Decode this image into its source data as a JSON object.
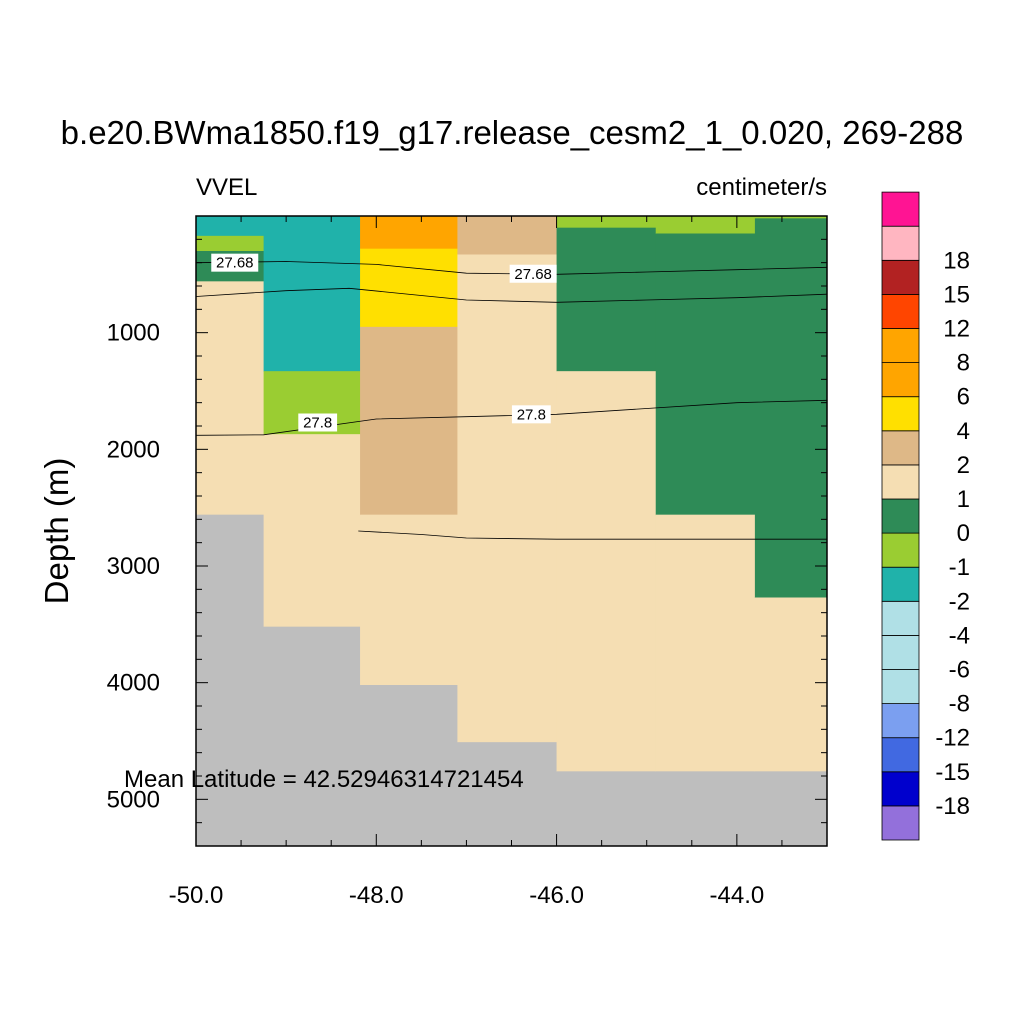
{
  "chart_data": {
    "type": "heatmap",
    "title": "b.e20.BWma1850.f19_g17.release_cesm2_1_0.020, 269-288",
    "variable_label": "VVEL",
    "units_label": "centimeter/s",
    "xlabel": "",
    "ylabel": "Depth (m)",
    "xlim": [
      -50.0,
      -43.0
    ],
    "ylim": [
      0,
      5400
    ],
    "y_reversed": true,
    "x_ticks": [
      -50.0,
      -48.0,
      -46.0,
      -44.0
    ],
    "x_tick_labels": [
      "-50.0",
      "-48.0",
      "-46.0",
      "-44.0"
    ],
    "y_ticks": [
      1000,
      2000,
      3000,
      4000,
      5000
    ],
    "y_tick_labels": [
      "1000",
      "2000",
      "3000",
      "4000",
      "5000"
    ],
    "annotation": "Mean Latitude = 42.52946314721454",
    "missing_color": "#bebebe",
    "columns": [
      {
        "x0": -50.0,
        "x1": -49.25
      },
      {
        "x0": -49.25,
        "x1": -48.18
      },
      {
        "x0": -48.18,
        "x1": -47.1
      },
      {
        "x0": -47.1,
        "x1": -46.0
      },
      {
        "x0": -46.0,
        "x1": -44.9
      },
      {
        "x0": -44.9,
        "x1": -43.8
      },
      {
        "x0": -43.8,
        "x1": -43.0
      }
    ],
    "cells": [
      {
        "col": 0,
        "d0": 0,
        "d1": 170,
        "color": "#20b2aa"
      },
      {
        "col": 0,
        "d0": 170,
        "d1": 300,
        "color": "#9acd32"
      },
      {
        "col": 0,
        "d0": 300,
        "d1": 560,
        "color": "#2e8b57"
      },
      {
        "col": 0,
        "d0": 560,
        "d1": 2560,
        "color": "#f5deb3"
      },
      {
        "col": 0,
        "d0": 2560,
        "d1": 5400,
        "color": "#bebebe"
      },
      {
        "col": 1,
        "d0": 0,
        "d1": 1330,
        "color": "#20b2aa"
      },
      {
        "col": 1,
        "d0": 1330,
        "d1": 1870,
        "color": "#9acd32"
      },
      {
        "col": 1,
        "d0": 1870,
        "d1": 3520,
        "color": "#f5deb3"
      },
      {
        "col": 1,
        "d0": 3520,
        "d1": 5400,
        "color": "#bebebe"
      },
      {
        "col": 2,
        "d0": 0,
        "d1": 280,
        "color": "#ffa500"
      },
      {
        "col": 2,
        "d0": 280,
        "d1": 950,
        "color": "#ffe000"
      },
      {
        "col": 2,
        "d0": 950,
        "d1": 2560,
        "color": "#deb887"
      },
      {
        "col": 2,
        "d0": 2560,
        "d1": 4020,
        "color": "#f5deb3"
      },
      {
        "col": 2,
        "d0": 4020,
        "d1": 5400,
        "color": "#bebebe"
      },
      {
        "col": 3,
        "d0": 0,
        "d1": 330,
        "color": "#deb887"
      },
      {
        "col": 3,
        "d0": 330,
        "d1": 4510,
        "color": "#f5deb3"
      },
      {
        "col": 3,
        "d0": 4510,
        "d1": 5400,
        "color": "#bebebe"
      },
      {
        "col": 4,
        "d0": 0,
        "d1": 100,
        "color": "#9acd32"
      },
      {
        "col": 4,
        "d0": 100,
        "d1": 1330,
        "color": "#2e8b57"
      },
      {
        "col": 4,
        "d0": 1330,
        "d1": 4760,
        "color": "#f5deb3"
      },
      {
        "col": 4,
        "d0": 4760,
        "d1": 5400,
        "color": "#bebebe"
      },
      {
        "col": 5,
        "d0": 0,
        "d1": 150,
        "color": "#9acd32"
      },
      {
        "col": 5,
        "d0": 150,
        "d1": 2560,
        "color": "#2e8b57"
      },
      {
        "col": 5,
        "d0": 2560,
        "d1": 4760,
        "color": "#f5deb3"
      },
      {
        "col": 5,
        "d0": 4760,
        "d1": 5400,
        "color": "#bebebe"
      },
      {
        "col": 6,
        "d0": 0,
        "d1": 20,
        "color": "#9acd32"
      },
      {
        "col": 6,
        "d0": 20,
        "d1": 3270,
        "color": "#2e8b57"
      },
      {
        "col": 6,
        "d0": 3270,
        "d1": 4760,
        "color": "#f5deb3"
      },
      {
        "col": 6,
        "d0": 4760,
        "d1": 5400,
        "color": "#bebebe"
      }
    ],
    "contours": [
      {
        "points": [
          [
            -50.0,
            400
          ],
          [
            -49.0,
            390
          ],
          [
            -48.0,
            415
          ],
          [
            -47.0,
            490
          ],
          [
            -46.0,
            500
          ],
          [
            -45.0,
            480
          ],
          [
            -44.0,
            460
          ],
          [
            -43.0,
            440
          ]
        ]
      },
      {
        "points": [
          [
            -50.0,
            690
          ],
          [
            -49.0,
            640
          ],
          [
            -48.3,
            620
          ],
          [
            -47.0,
            720
          ],
          [
            -46.0,
            740
          ],
          [
            -45.0,
            720
          ],
          [
            -44.0,
            700
          ],
          [
            -43.0,
            670
          ]
        ]
      },
      {
        "points": [
          [
            -50.0,
            1880
          ],
          [
            -49.25,
            1875
          ],
          [
            -48.0,
            1740
          ],
          [
            -47.0,
            1720
          ],
          [
            -46.0,
            1700
          ],
          [
            -45.0,
            1650
          ],
          [
            -44.0,
            1600
          ],
          [
            -43.0,
            1580
          ]
        ]
      },
      {
        "points": [
          [
            -48.2,
            2700
          ],
          [
            -47.5,
            2730
          ],
          [
            -47.0,
            2760
          ],
          [
            -46.0,
            2770
          ],
          [
            -45.0,
            2770
          ],
          [
            -44.0,
            2770
          ],
          [
            -43.0,
            2770
          ]
        ]
      }
    ],
    "contour_labels": [
      {
        "text": "27.68",
        "x": -49.57,
        "depth": 400
      },
      {
        "text": "27.68",
        "x": -46.26,
        "depth": 495
      },
      {
        "text": "27.8",
        "x": -48.65,
        "depth": 1770
      },
      {
        "text": "27.8",
        "x": -46.28,
        "depth": 1700
      }
    ],
    "colorbar": {
      "colors": [
        "#9370db",
        "#0000cd",
        "#4169e1",
        "#7b9ff0",
        "#b0e0e6",
        "#b0e0e6",
        "#b0e0e6",
        "#20b2aa",
        "#9acd32",
        "#2e8b57",
        "#f5deb3",
        "#deb887",
        "#ffe000",
        "#ffa500",
        "#ffa500",
        "#ff4500",
        "#b22222",
        "#ffb6c1",
        "#ff1493"
      ],
      "levels": [
        "-18",
        "-15",
        "-12",
        "-8",
        "-6",
        "-4",
        "-2",
        "-1",
        "0",
        "1",
        "2",
        "4",
        "6",
        "8",
        "12",
        "15",
        "18"
      ]
    }
  }
}
